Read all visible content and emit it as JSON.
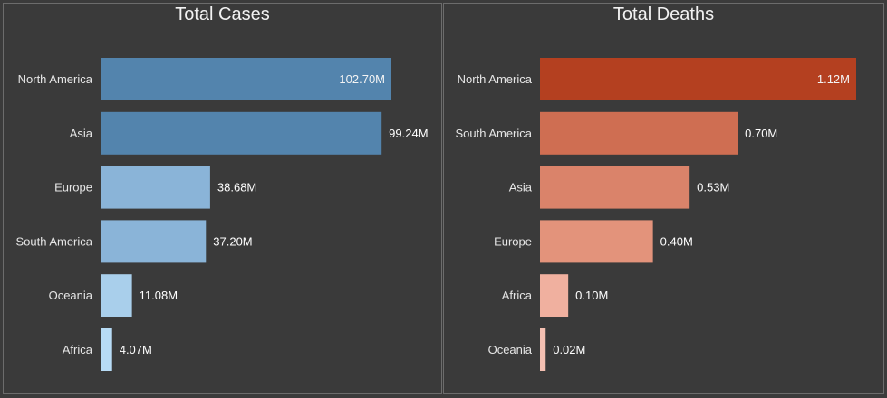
{
  "chart_data": [
    {
      "type": "bar",
      "orientation": "horizontal",
      "title": "Total Cases",
      "categories": [
        "North America",
        "Asia",
        "Europe",
        "South America",
        "Oceania",
        "Africa"
      ],
      "values": [
        102.7,
        99.24,
        38.68,
        37.2,
        11.08,
        4.07
      ],
      "value_labels": [
        "102.70M",
        "99.24M",
        "38.68M",
        "37.20M",
        "11.08M",
        "4.07M"
      ],
      "unit": "M",
      "colors": [
        "#5384ad",
        "#5384ad",
        "#8ab4d8",
        "#8ab4d8",
        "#a9cfeb",
        "#b7dbf5"
      ],
      "grid": false
    },
    {
      "type": "bar",
      "orientation": "horizontal",
      "title": "Total Deaths",
      "categories": [
        "North America",
        "South America",
        "Asia",
        "Europe",
        "Africa",
        "Oceania"
      ],
      "values": [
        1.12,
        0.7,
        0.53,
        0.4,
        0.1,
        0.02
      ],
      "value_labels": [
        "1.12M",
        "0.70M",
        "0.53M",
        "0.40M",
        "0.10M",
        "0.02M"
      ],
      "unit": "M",
      "colors": [
        "#b44020",
        "#cf6e52",
        "#da836a",
        "#e3937b",
        "#f0b09f",
        "#f4c0b2"
      ],
      "grid": false
    }
  ],
  "theme": {
    "background": "#3a3a3a",
    "text": "#f2f2f2",
    "border": "#6c6c6c"
  }
}
